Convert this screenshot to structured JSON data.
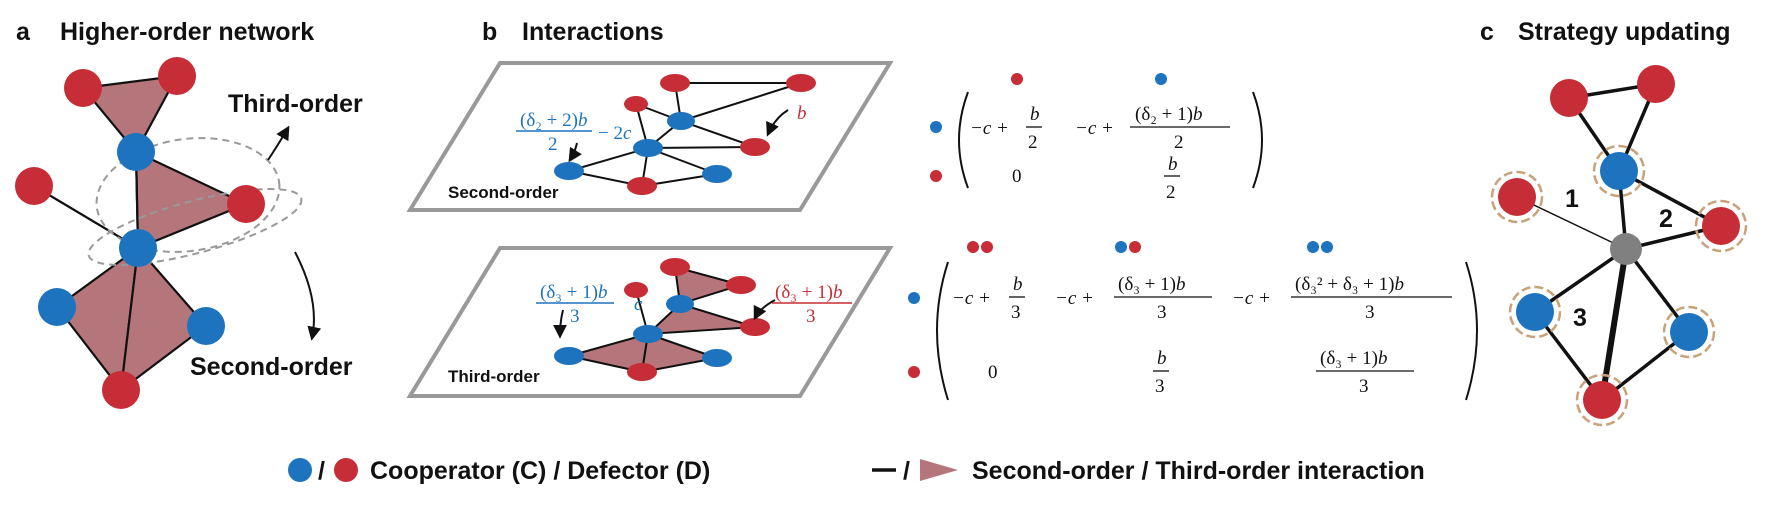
{
  "panels": {
    "a": {
      "letter": "a",
      "title": "Higher-order network",
      "third_order_label": "Third-order",
      "second_order_label": "Second-order"
    },
    "b": {
      "letter": "b",
      "title": "Interactions",
      "second_plane_label": "Second-order",
      "third_plane_label": "Third-order",
      "second_annot_blue": "(δ₂ + 2)b / 2 − 2c",
      "second_annot_red": "b",
      "third_annot_blue": "(δ₃ + 1)b / 3",
      "third_annot_c": "c",
      "third_annot_red": "(δ₃ + 1)b / 3"
    },
    "c": {
      "letter": "c",
      "title": "Strategy updating",
      "edge_labels": [
        "1",
        "2",
        "3"
      ]
    }
  },
  "matrices": {
    "second_order": {
      "row1": [
        "−c + b/2",
        "−c + (δ₂ + 1)b/2"
      ],
      "row2": [
        "0",
        "b/2"
      ]
    },
    "third_order": {
      "row1": [
        "−c + b/3",
        "−c + (δ₃ + 1)b/3",
        "−c + (δ₃² + δ₃ + 1)b/3"
      ],
      "row2": [
        "0",
        "b/3",
        "(δ₃ + 1)b/3"
      ]
    }
  },
  "legend": {
    "slash1": "/",
    "nodes_text": "Cooperator (C) / Defector (D)",
    "slash2": "/",
    "interactions_text": "Second-order / Third-order interaction"
  },
  "colors": {
    "cooperator": "#1e73be",
    "defector": "#c62d36",
    "triangle": "#b5767b",
    "focal": "#808080",
    "halo": "#c8a27a",
    "plane": "#999999"
  }
}
